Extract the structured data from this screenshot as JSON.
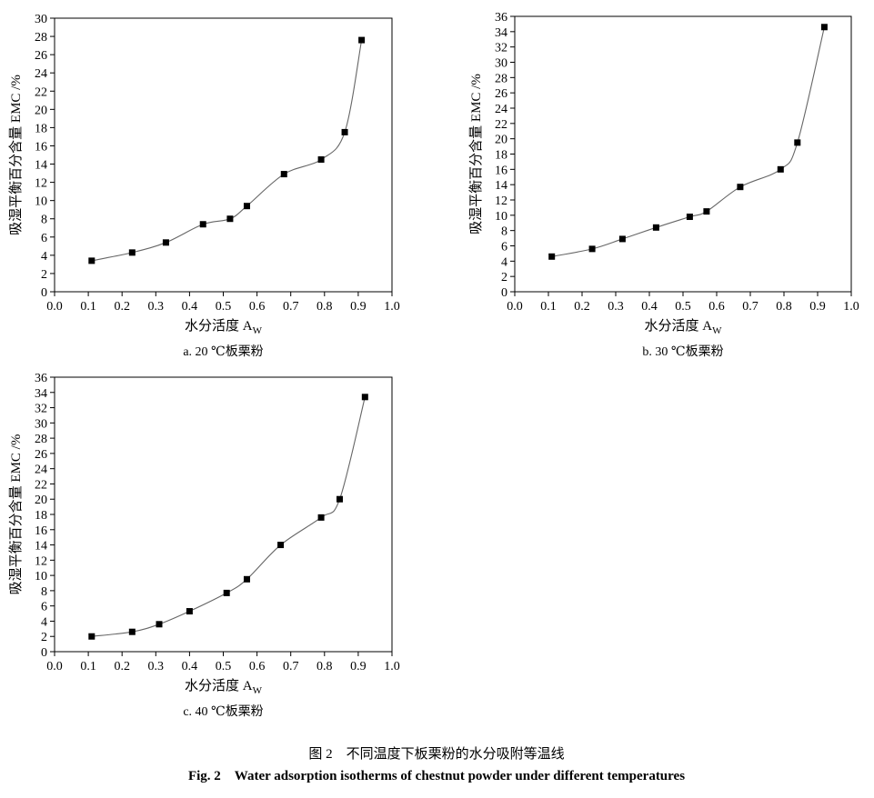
{
  "figure": {
    "caption_cn": "图 2　不同温度下板栗粉的水分吸附等温线",
    "caption_en": "Fig. 2　Water adsorption isotherms of chestnut powder under different temperatures"
  },
  "chart_data": [
    {
      "type": "scatter",
      "subtitle": "a. 20 ℃板栗粉",
      "xlabel": "水分活度 A",
      "xlabel_sub": "W",
      "ylabel": "吸湿平衡百分含量 EMC /%",
      "xlim": [
        0,
        1.0
      ],
      "ylim": [
        0,
        30
      ],
      "xticks": [
        "0.0",
        "0.1",
        "0.2",
        "0.3",
        "0.4",
        "0.5",
        "0.6",
        "0.7",
        "0.8",
        "0.9",
        "1.0"
      ],
      "yticks": [
        "0",
        "2",
        "4",
        "6",
        "8",
        "10",
        "12",
        "14",
        "16",
        "18",
        "20",
        "22",
        "24",
        "26",
        "28",
        "30"
      ],
      "series": [
        {
          "x": [
            0.11,
            0.23,
            0.33,
            0.44,
            0.52,
            0.57,
            0.68,
            0.79,
            0.86,
            0.91
          ],
          "y": [
            3.4,
            4.3,
            5.4,
            7.4,
            8.0,
            9.4,
            12.9,
            14.5,
            17.5,
            27.6
          ]
        }
      ],
      "grid": false
    },
    {
      "type": "scatter",
      "subtitle": "b. 30 ℃板栗粉",
      "xlabel": "水分活度 A",
      "xlabel_sub": "W",
      "ylabel": "吸湿平衡百分含量 EMC /%",
      "xlim": [
        0,
        1.0
      ],
      "ylim": [
        0,
        36
      ],
      "xticks": [
        "0.0",
        "0.1",
        "0.2",
        "0.3",
        "0.4",
        "0.5",
        "0.6",
        "0.7",
        "0.8",
        "0.9",
        "1.0"
      ],
      "yticks": [
        "0",
        "2",
        "4",
        "6",
        "8",
        "10",
        "12",
        "14",
        "16",
        "18",
        "20",
        "22",
        "24",
        "26",
        "28",
        "30",
        "32",
        "34",
        "36"
      ],
      "series": [
        {
          "x": [
            0.11,
            0.23,
            0.32,
            0.42,
            0.52,
            0.57,
            0.67,
            0.79,
            0.84,
            0.92
          ],
          "y": [
            4.6,
            5.6,
            6.9,
            8.4,
            9.8,
            10.5,
            13.7,
            16.0,
            19.5,
            34.6
          ]
        }
      ],
      "grid": false
    },
    {
      "type": "scatter",
      "subtitle": "c. 40 ℃板栗粉",
      "xlabel": "水分活度 A",
      "xlabel_sub": "W",
      "ylabel": "吸湿平衡百分含量 EMC /%",
      "xlim": [
        0,
        1.0
      ],
      "ylim": [
        0,
        36
      ],
      "xticks": [
        "0.0",
        "0.1",
        "0.2",
        "0.3",
        "0.4",
        "0.5",
        "0.6",
        "0.7",
        "0.8",
        "0.9",
        "1.0"
      ],
      "yticks": [
        "0",
        "2",
        "4",
        "6",
        "8",
        "10",
        "12",
        "14",
        "16",
        "18",
        "20",
        "22",
        "24",
        "26",
        "28",
        "30",
        "32",
        "34",
        "36"
      ],
      "series": [
        {
          "x": [
            0.11,
            0.23,
            0.31,
            0.4,
            0.51,
            0.57,
            0.67,
            0.79,
            0.845,
            0.92
          ],
          "y": [
            2.0,
            2.6,
            3.6,
            5.3,
            7.7,
            9.5,
            14.0,
            17.6,
            20.0,
            33.4
          ]
        }
      ],
      "grid": false
    }
  ]
}
